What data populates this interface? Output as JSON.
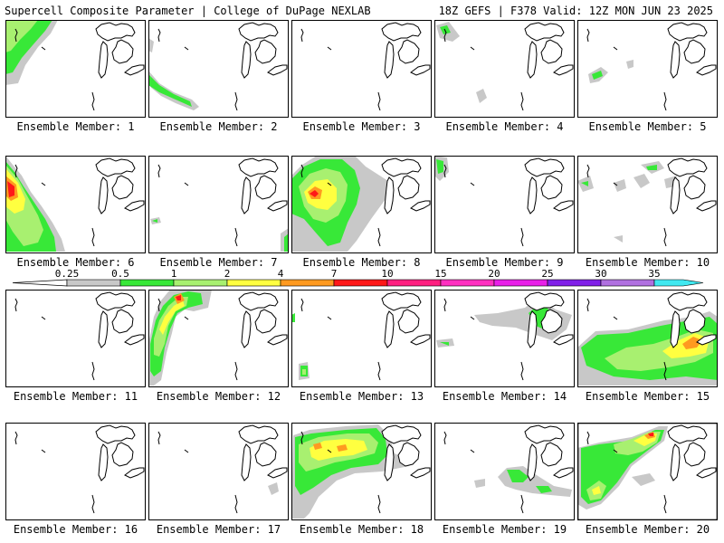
{
  "header": {
    "title_left": "Supercell Composite Parameter | College of DuPage NEXLAB",
    "title_right": "18Z GEFS | F378 Valid: 12Z MON JUN 23 2025"
  },
  "legend": {
    "ticks": [
      "0.25",
      "0.5",
      "1",
      "2",
      "4",
      "7",
      "10",
      "15",
      "20",
      "25",
      "30",
      "35"
    ],
    "colors": [
      "#c8c8c8",
      "#38e838",
      "#a8f070",
      "#ffff40",
      "#ff9a20",
      "#ff1818",
      "#ff2080",
      "#ff30c0",
      "#e820e8",
      "#8020e8",
      "#b070e0",
      "#40e8f0"
    ]
  },
  "panel_label_prefix": "Ensemble Member:",
  "members": [
    {
      "label": "Ensemble Member: 1"
    },
    {
      "label": "Ensemble Member: 2"
    },
    {
      "label": "Ensemble Member: 3"
    },
    {
      "label": "Ensemble Member: 4"
    },
    {
      "label": "Ensemble Member: 5"
    },
    {
      "label": "Ensemble Member: 6"
    },
    {
      "label": "Ensemble Member: 7"
    },
    {
      "label": "Ensemble Member: 8"
    },
    {
      "label": "Ensemble Member: 9"
    },
    {
      "label": "Ensemble Member: 10"
    },
    {
      "label": "Ensemble Member: 11"
    },
    {
      "label": "Ensemble Member: 12"
    },
    {
      "label": "Ensemble Member: 13"
    },
    {
      "label": "Ensemble Member: 14"
    },
    {
      "label": "Ensemble Member: 15"
    },
    {
      "label": "Ensemble Member: 16"
    },
    {
      "label": "Ensemble Member: 17"
    },
    {
      "label": "Ensemble Member: 18"
    },
    {
      "label": "Ensemble Member: 19"
    },
    {
      "label": "Ensemble Member: 20"
    }
  ]
}
